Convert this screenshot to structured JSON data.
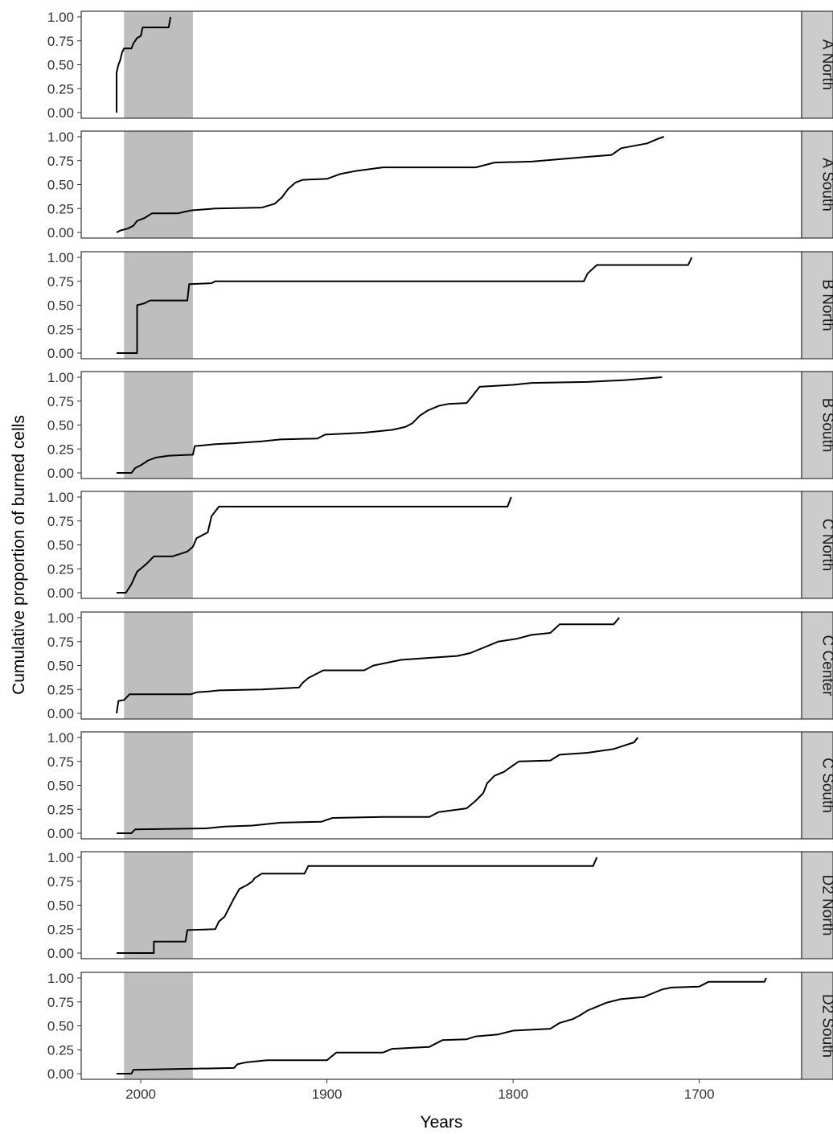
{
  "chart_data": {
    "type": "line",
    "subtype": "step",
    "facet_direction": "vertical",
    "x_reversed": true,
    "xlabel": "Years",
    "ylabel": "Cumulative proportion of burned cells",
    "xlim": [
      2032,
      1645
    ],
    "ylim": [
      -0.05,
      1.05
    ],
    "x_ticks": [
      2000,
      1900,
      1800,
      1700
    ],
    "y_ticks": [
      "0.00",
      "0.25",
      "0.50",
      "0.75",
      "1.00"
    ],
    "grid": false,
    "shaded_period": {
      "from": 2009,
      "to": 1972,
      "color": "#bebebe"
    },
    "colors": {
      "line": "#000000",
      "shade": "#bebebe",
      "strip": "#cccccc",
      "panel_border": "#333333"
    },
    "series": [
      {
        "name": "A North",
        "points": [
          [
            2013,
            0.0
          ],
          [
            2013,
            0.42
          ],
          [
            2012,
            0.5
          ],
          [
            2011,
            0.55
          ],
          [
            2010,
            0.63
          ],
          [
            2009,
            0.67
          ],
          [
            2005,
            0.67
          ],
          [
            2004,
            0.72
          ],
          [
            2002,
            0.78
          ],
          [
            2000,
            0.8
          ],
          [
            1999,
            0.89
          ],
          [
            1985,
            0.89
          ],
          [
            1984,
            1.0
          ]
        ]
      },
      {
        "name": "A South",
        "points": [
          [
            2013,
            0.0
          ],
          [
            2011,
            0.02
          ],
          [
            2007,
            0.04
          ],
          [
            2004,
            0.07
          ],
          [
            2002,
            0.12
          ],
          [
            1998,
            0.15
          ],
          [
            1994,
            0.2
          ],
          [
            1980,
            0.2
          ],
          [
            1973,
            0.23
          ],
          [
            1960,
            0.25
          ],
          [
            1935,
            0.26
          ],
          [
            1928,
            0.3
          ],
          [
            1924,
            0.37
          ],
          [
            1921,
            0.45
          ],
          [
            1917,
            0.52
          ],
          [
            1913,
            0.55
          ],
          [
            1900,
            0.56
          ],
          [
            1893,
            0.61
          ],
          [
            1885,
            0.64
          ],
          [
            1870,
            0.68
          ],
          [
            1820,
            0.68
          ],
          [
            1810,
            0.73
          ],
          [
            1790,
            0.74
          ],
          [
            1760,
            0.79
          ],
          [
            1747,
            0.81
          ],
          [
            1742,
            0.88
          ],
          [
            1728,
            0.93
          ],
          [
            1722,
            0.98
          ],
          [
            1719,
            1.0
          ]
        ]
      },
      {
        "name": "B North",
        "points": [
          [
            2013,
            0.0
          ],
          [
            2002,
            0.0
          ],
          [
            2002,
            0.5
          ],
          [
            1998,
            0.52
          ],
          [
            1995,
            0.55
          ],
          [
            1975,
            0.55
          ],
          [
            1974,
            0.72
          ],
          [
            1962,
            0.73
          ],
          [
            1960,
            0.75
          ],
          [
            1762,
            0.75
          ],
          [
            1760,
            0.83
          ],
          [
            1755,
            0.92
          ],
          [
            1706,
            0.92
          ],
          [
            1704,
            1.0
          ]
        ]
      },
      {
        "name": "B South",
        "points": [
          [
            2013,
            0.0
          ],
          [
            2005,
            0.0
          ],
          [
            2003,
            0.05
          ],
          [
            2000,
            0.08
          ],
          [
            1996,
            0.13
          ],
          [
            1992,
            0.16
          ],
          [
            1985,
            0.18
          ],
          [
            1972,
            0.19
          ],
          [
            1971,
            0.28
          ],
          [
            1960,
            0.3
          ],
          [
            1950,
            0.31
          ],
          [
            1935,
            0.33
          ],
          [
            1925,
            0.35
          ],
          [
            1905,
            0.36
          ],
          [
            1901,
            0.4
          ],
          [
            1880,
            0.42
          ],
          [
            1865,
            0.45
          ],
          [
            1858,
            0.48
          ],
          [
            1854,
            0.52
          ],
          [
            1850,
            0.6
          ],
          [
            1846,
            0.65
          ],
          [
            1840,
            0.7
          ],
          [
            1835,
            0.72
          ],
          [
            1825,
            0.73
          ],
          [
            1822,
            0.8
          ],
          [
            1818,
            0.9
          ],
          [
            1800,
            0.92
          ],
          [
            1790,
            0.94
          ],
          [
            1760,
            0.95
          ],
          [
            1740,
            0.97
          ],
          [
            1720,
            1.0
          ]
        ]
      },
      {
        "name": "C North",
        "points": [
          [
            2013,
            0.0
          ],
          [
            2008,
            0.0
          ],
          [
            2005,
            0.09
          ],
          [
            2002,
            0.22
          ],
          [
            1997,
            0.3
          ],
          [
            1993,
            0.38
          ],
          [
            1983,
            0.38
          ],
          [
            1975,
            0.43
          ],
          [
            1972,
            0.48
          ],
          [
            1970,
            0.57
          ],
          [
            1964,
            0.63
          ],
          [
            1962,
            0.8
          ],
          [
            1958,
            0.9
          ],
          [
            1803,
            0.9
          ],
          [
            1801,
            1.0
          ]
        ]
      },
      {
        "name": "C Center",
        "points": [
          [
            2013,
            0.0
          ],
          [
            2012,
            0.13
          ],
          [
            2009,
            0.14
          ],
          [
            2006,
            0.2
          ],
          [
            1973,
            0.2
          ],
          [
            1970,
            0.22
          ],
          [
            1963,
            0.23
          ],
          [
            1958,
            0.24
          ],
          [
            1935,
            0.25
          ],
          [
            1915,
            0.27
          ],
          [
            1913,
            0.32
          ],
          [
            1910,
            0.37
          ],
          [
            1902,
            0.45
          ],
          [
            1880,
            0.45
          ],
          [
            1875,
            0.5
          ],
          [
            1860,
            0.56
          ],
          [
            1830,
            0.6
          ],
          [
            1823,
            0.63
          ],
          [
            1808,
            0.75
          ],
          [
            1798,
            0.78
          ],
          [
            1790,
            0.82
          ],
          [
            1780,
            0.84
          ],
          [
            1775,
            0.93
          ],
          [
            1746,
            0.93
          ],
          [
            1743,
            1.0
          ]
        ]
      },
      {
        "name": "C South",
        "points": [
          [
            2013,
            0.0
          ],
          [
            2005,
            0.0
          ],
          [
            2003,
            0.04
          ],
          [
            1965,
            0.05
          ],
          [
            1955,
            0.07
          ],
          [
            1940,
            0.08
          ],
          [
            1925,
            0.11
          ],
          [
            1903,
            0.12
          ],
          [
            1897,
            0.16
          ],
          [
            1870,
            0.17
          ],
          [
            1845,
            0.17
          ],
          [
            1840,
            0.22
          ],
          [
            1825,
            0.26
          ],
          [
            1820,
            0.34
          ],
          [
            1816,
            0.42
          ],
          [
            1814,
            0.52
          ],
          [
            1810,
            0.6
          ],
          [
            1805,
            0.64
          ],
          [
            1797,
            0.75
          ],
          [
            1780,
            0.76
          ],
          [
            1775,
            0.82
          ],
          [
            1760,
            0.84
          ],
          [
            1746,
            0.88
          ],
          [
            1735,
            0.95
          ],
          [
            1733,
            1.0
          ]
        ]
      },
      {
        "name": "D2 North",
        "points": [
          [
            2013,
            0.0
          ],
          [
            1993,
            0.0
          ],
          [
            1993,
            0.12
          ],
          [
            1976,
            0.12
          ],
          [
            1975,
            0.24
          ],
          [
            1960,
            0.25
          ],
          [
            1958,
            0.33
          ],
          [
            1955,
            0.38
          ],
          [
            1950,
            0.57
          ],
          [
            1947,
            0.67
          ],
          [
            1943,
            0.71
          ],
          [
            1940,
            0.75
          ],
          [
            1939,
            0.78
          ],
          [
            1935,
            0.83
          ],
          [
            1912,
            0.83
          ],
          [
            1910,
            0.91
          ],
          [
            1757,
            0.91
          ],
          [
            1755,
            1.0
          ]
        ]
      },
      {
        "name": "D2 South",
        "points": [
          [
            2013,
            0.0
          ],
          [
            2005,
            0.0
          ],
          [
            2004,
            0.04
          ],
          [
            1950,
            0.06
          ],
          [
            1948,
            0.1
          ],
          [
            1943,
            0.12
          ],
          [
            1932,
            0.14
          ],
          [
            1900,
            0.14
          ],
          [
            1895,
            0.22
          ],
          [
            1870,
            0.22
          ],
          [
            1865,
            0.26
          ],
          [
            1845,
            0.28
          ],
          [
            1838,
            0.35
          ],
          [
            1825,
            0.36
          ],
          [
            1820,
            0.39
          ],
          [
            1808,
            0.41
          ],
          [
            1800,
            0.45
          ],
          [
            1780,
            0.47
          ],
          [
            1775,
            0.53
          ],
          [
            1768,
            0.57
          ],
          [
            1764,
            0.61
          ],
          [
            1760,
            0.66
          ],
          [
            1755,
            0.7
          ],
          [
            1750,
            0.74
          ],
          [
            1742,
            0.78
          ],
          [
            1730,
            0.8
          ],
          [
            1725,
            0.84
          ],
          [
            1720,
            0.88
          ],
          [
            1715,
            0.9
          ],
          [
            1700,
            0.91
          ],
          [
            1695,
            0.96
          ],
          [
            1665,
            0.96
          ],
          [
            1664,
            1.0
          ]
        ]
      }
    ]
  }
}
